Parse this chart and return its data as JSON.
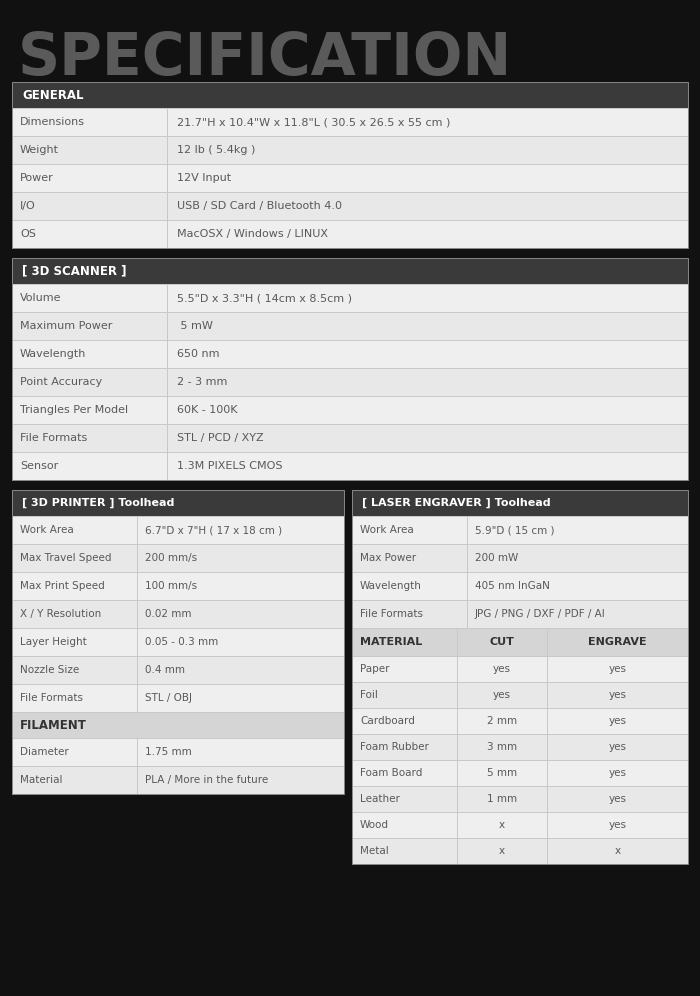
{
  "title": "SPECIFICATION",
  "bg_color": "#111111",
  "section_header_bg": "#3a3a3a",
  "row_bg_even": "#efefef",
  "row_bg_odd": "#e8e8e8",
  "cell_border_color": "#c8c8c8",
  "text_color": "#555555",
  "general_section": {
    "header": "GENERAL",
    "rows": [
      [
        "Dimensions",
        "21.7\"H x 10.4\"W x 11.8\"L ( 30.5 x 26.5 x 55 cm )"
      ],
      [
        "Weight",
        "12 lb ( 5.4kg )"
      ],
      [
        "Power",
        "12V Input"
      ],
      [
        "I/O",
        "USB / SD Card / Bluetooth 4.0"
      ],
      [
        "OS",
        "MacOSX / Windows / LINUX"
      ]
    ]
  },
  "scanner_section": {
    "header": "[ 3D SCANNER ]",
    "rows": [
      [
        "Volume",
        "5.5\"D x 3.3\"H ( 14cm x 8.5cm )"
      ],
      [
        "Maximum Power",
        " 5 mW"
      ],
      [
        "Wavelength",
        "650 nm"
      ],
      [
        "Point Accuracy",
        "2 - 3 mm"
      ],
      [
        "Triangles Per Model",
        "60K - 100K"
      ],
      [
        "File Formats",
        "STL / PCD / XYZ"
      ],
      [
        "Sensor",
        "1.3M PIXELS CMOS"
      ]
    ]
  },
  "printer_section": {
    "header": "[ 3D PRINTER ] Toolhead",
    "rows": [
      [
        "Work Area",
        "6.7\"D x 7\"H ( 17 x 18 cm )"
      ],
      [
        "Max Travel Speed",
        "200 mm/s"
      ],
      [
        "Max Print Speed",
        "100 mm/s"
      ],
      [
        "X / Y Resolution",
        "0.02 mm"
      ],
      [
        "Layer Height",
        "0.05 - 0.3 mm"
      ],
      [
        "Nozzle Size",
        "0.4 mm"
      ],
      [
        "File Formats",
        "STL / OBJ"
      ]
    ],
    "filament_header": "FILAMENT",
    "filament_rows": [
      [
        "Diameter",
        "1.75 mm"
      ],
      [
        "Material",
        "PLA / More in the future"
      ]
    ]
  },
  "laser_section": {
    "header": "[ LASER ENGRAVER ] Toolhead",
    "rows": [
      [
        "Work Area",
        "5.9\"D ( 15 cm )"
      ],
      [
        "Max Power",
        "200 mW"
      ],
      [
        "Wavelength",
        "405 nm InGaN"
      ],
      [
        "File Formats",
        "JPG / PNG / DXF / PDF / AI"
      ]
    ],
    "material_header": [
      "MATERIAL",
      "CUT",
      "ENGRAVE"
    ],
    "material_rows": [
      [
        "Paper",
        "yes",
        "yes"
      ],
      [
        "Foil",
        "yes",
        "yes"
      ],
      [
        "Cardboard",
        "2 mm",
        "yes"
      ],
      [
        "Foam Rubber",
        "3 mm",
        "yes"
      ],
      [
        "Foam Board",
        "5 mm",
        "yes"
      ],
      [
        "Leather",
        "1 mm",
        "yes"
      ],
      [
        "Wood",
        "x",
        "yes"
      ],
      [
        "Metal",
        "x",
        "x"
      ]
    ]
  }
}
